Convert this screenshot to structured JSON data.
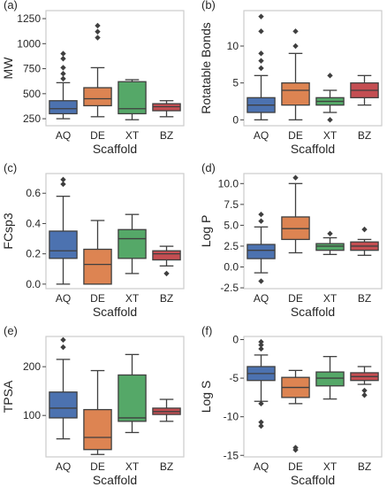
{
  "panel_title": "(a)",
  "chart_data": [
    {
      "panel_label": "(a)",
      "type": "box",
      "categories": [
        "AQ",
        "DE",
        "XT",
        "BZ"
      ],
      "xlabel": "Scaffold",
      "ylabel": "MW",
      "ylim": [
        180,
        1330
      ],
      "yticks": [
        250,
        500,
        750,
        1000,
        1250
      ],
      "grid": "off",
      "boxes": [
        {
          "name": "AQ",
          "color": "#4c72b0",
          "whisker_low": 250,
          "q1": 300,
          "median": 350,
          "q3": 430,
          "whisker_high": 610,
          "outliers": [
            650,
            700,
            760,
            850,
            900
          ]
        },
        {
          "name": "DE",
          "color": "#dd8452",
          "whisker_low": 270,
          "q1": 380,
          "median": 450,
          "q3": 560,
          "whisker_high": 760,
          "outliers": [
            1060,
            1120,
            1180
          ]
        },
        {
          "name": "XT",
          "color": "#55a868",
          "whisker_low": 240,
          "q1": 300,
          "median": 350,
          "q3": 620,
          "whisker_high": 640,
          "outliers": []
        },
        {
          "name": "BZ",
          "color": "#c44e52",
          "whisker_low": 270,
          "q1": 330,
          "median": 370,
          "q3": 400,
          "whisker_high": 430,
          "outliers": []
        }
      ]
    },
    {
      "panel_label": "(b)",
      "type": "box",
      "categories": [
        "AQ",
        "DE",
        "XT",
        "BZ"
      ],
      "xlabel": "Scaffold",
      "ylabel": "Rotatable Bonds",
      "ylim": [
        -0.8,
        14.8
      ],
      "yticks": [
        0,
        5,
        10
      ],
      "grid": "off",
      "boxes": [
        {
          "name": "AQ",
          "color": "#4c72b0",
          "whisker_low": 0,
          "q1": 1,
          "median": 2,
          "q3": 3,
          "whisker_high": 6,
          "outliers": [
            7,
            8,
            9,
            12,
            14
          ]
        },
        {
          "name": "DE",
          "color": "#dd8452",
          "whisker_low": 0,
          "q1": 2,
          "median": 4,
          "q3": 5,
          "whisker_high": 9,
          "outliers": [
            10,
            12
          ]
        },
        {
          "name": "XT",
          "color": "#55a868",
          "whisker_low": 1,
          "q1": 2,
          "median": 2.5,
          "q3": 3,
          "whisker_high": 4,
          "outliers": [
            0,
            6
          ]
        },
        {
          "name": "BZ",
          "color": "#c44e52",
          "whisker_low": 2,
          "q1": 3,
          "median": 4,
          "q3": 5,
          "whisker_high": 6,
          "outliers": []
        }
      ]
    },
    {
      "panel_label": "(c)",
      "type": "box",
      "categories": [
        "AQ",
        "DE",
        "XT",
        "BZ"
      ],
      "xlabel": "Scaffold",
      "ylabel": "FCsp3",
      "ylim": [
        -0.03,
        0.73
      ],
      "yticks": [
        0.0,
        0.2,
        0.4,
        0.6
      ],
      "grid": "off",
      "boxes": [
        {
          "name": "AQ",
          "color": "#4c72b0",
          "whisker_low": 0.0,
          "q1": 0.17,
          "median": 0.22,
          "q3": 0.35,
          "whisker_high": 0.58,
          "outliers": [
            0.66,
            0.69
          ]
        },
        {
          "name": "DE",
          "color": "#dd8452",
          "whisker_low": 0.0,
          "q1": 0.0,
          "median": 0.13,
          "q3": 0.23,
          "whisker_high": 0.42,
          "outliers": []
        },
        {
          "name": "XT",
          "color": "#55a868",
          "whisker_low": 0.07,
          "q1": 0.17,
          "median": 0.3,
          "q3": 0.36,
          "whisker_high": 0.46,
          "outliers": []
        },
        {
          "name": "BZ",
          "color": "#c44e52",
          "whisker_low": 0.12,
          "q1": 0.16,
          "median": 0.2,
          "q3": 0.22,
          "whisker_high": 0.25,
          "outliers": [
            0.07
          ]
        }
      ]
    },
    {
      "panel_label": "(d)",
      "type": "box",
      "categories": [
        "AQ",
        "DE",
        "XT",
        "BZ"
      ],
      "xlabel": "Scaffold",
      "ylabel": "Log P",
      "ylim": [
        -2.6,
        11.2
      ],
      "yticks": [
        -2.5,
        0.0,
        2.5,
        5.0,
        7.5,
        10.0
      ],
      "grid": "off",
      "boxes": [
        {
          "name": "AQ",
          "color": "#4c72b0",
          "whisker_low": -0.7,
          "q1": 1.0,
          "median": 2.0,
          "q3": 2.7,
          "whisker_high": 4.8,
          "outliers": [
            -1.7,
            5.5,
            6.3
          ]
        },
        {
          "name": "DE",
          "color": "#dd8452",
          "whisker_low": 1.7,
          "q1": 3.3,
          "median": 4.6,
          "q3": 6.0,
          "whisker_high": 10.0,
          "outliers": [
            10.7
          ]
        },
        {
          "name": "XT",
          "color": "#55a868",
          "whisker_low": 1.5,
          "q1": 2.0,
          "median": 2.5,
          "q3": 2.8,
          "whisker_high": 3.5,
          "outliers": [
            4.0
          ]
        },
        {
          "name": "BZ",
          "color": "#c44e52",
          "whisker_low": 1.4,
          "q1": 2.0,
          "median": 2.5,
          "q3": 3.0,
          "whisker_high": 3.3,
          "outliers": [
            4.5
          ]
        }
      ]
    },
    {
      "panel_label": "(e)",
      "type": "box",
      "categories": [
        "AQ",
        "DE",
        "XT",
        "BZ"
      ],
      "xlabel": "Scaffold",
      "ylabel": "TPSA",
      "ylim": [
        15,
        262
      ],
      "yticks": [
        100,
        200
      ],
      "grid": "off",
      "boxes": [
        {
          "name": "AQ",
          "color": "#4c72b0",
          "whisker_low": 52,
          "q1": 95,
          "median": 115,
          "q3": 148,
          "whisker_high": 215,
          "outliers": [
            240,
            255
          ]
        },
        {
          "name": "DE",
          "color": "#dd8452",
          "whisker_low": 20,
          "q1": 30,
          "median": 55,
          "q3": 112,
          "whisker_high": 192,
          "outliers": []
        },
        {
          "name": "XT",
          "color": "#55a868",
          "whisker_low": 65,
          "q1": 88,
          "median": 95,
          "q3": 183,
          "whisker_high": 225,
          "outliers": []
        },
        {
          "name": "BZ",
          "color": "#c44e52",
          "whisker_low": 88,
          "q1": 102,
          "median": 108,
          "q3": 115,
          "whisker_high": 133,
          "outliers": []
        }
      ]
    },
    {
      "panel_label": "(f)",
      "type": "box",
      "categories": [
        "AQ",
        "DE",
        "XT",
        "BZ"
      ],
      "xlabel": "Scaffold",
      "ylabel": "Log S",
      "ylim": [
        -15.2,
        0.4
      ],
      "yticks": [
        -15,
        -10,
        -5,
        0
      ],
      "grid": "off",
      "boxes": [
        {
          "name": "AQ",
          "color": "#4c72b0",
          "whisker_low": -8.0,
          "q1": -5.3,
          "median": -4.4,
          "q3": -3.5,
          "whisker_high": -2.0,
          "outliers": [
            -0.3,
            -0.7,
            -1.2,
            -8.3,
            -10.7,
            -11.2
          ]
        },
        {
          "name": "DE",
          "color": "#dd8452",
          "whisker_low": -8.3,
          "q1": -7.5,
          "median": -6.2,
          "q3": -4.9,
          "whisker_high": -4.0,
          "outliers": [
            -14.0,
            -14.3
          ]
        },
        {
          "name": "XT",
          "color": "#55a868",
          "whisker_low": -7.7,
          "q1": -6.0,
          "median": -5.0,
          "q3": -4.2,
          "whisker_high": -2.2,
          "outliers": []
        },
        {
          "name": "BZ",
          "color": "#c44e52",
          "whisker_low": -5.8,
          "q1": -5.3,
          "median": -4.8,
          "q3": -4.3,
          "whisker_high": -3.5,
          "outliers": [
            -6.6,
            -7.2
          ]
        }
      ]
    }
  ]
}
